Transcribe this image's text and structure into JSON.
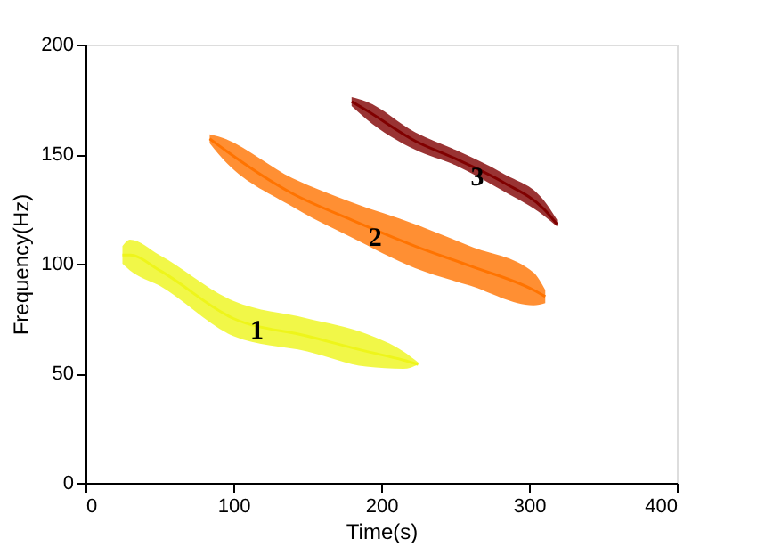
{
  "chart_data": {
    "type": "line",
    "xlabel": "Time(s)",
    "ylabel": "Frequency(Hz)",
    "xlim": [
      0,
      400
    ],
    "xticks": [
      0,
      100,
      200,
      300,
      400
    ],
    "ylim": [
      0,
      200
    ],
    "yticks": [
      0,
      50,
      100,
      150,
      200
    ],
    "grid": false,
    "series": [
      {
        "color": "#eef51a",
        "x": [
          25,
          30,
          50,
          100,
          150,
          190,
          215,
          225
        ],
        "values": [
          104,
          104,
          97,
          75,
          67,
          60,
          56,
          54
        ],
        "lower": [
          100,
          97,
          90,
          67,
          60,
          53,
          52,
          54
        ],
        "upper": [
          108,
          111,
          104,
          83,
          75,
          68,
          60,
          55
        ]
      },
      {
        "color": "#ff7300",
        "x": [
          84,
          90,
          140,
          180,
          223,
          260,
          303,
          311
        ],
        "values": [
          157,
          154,
          132,
          120,
          108,
          99,
          88,
          85
        ],
        "lower": [
          155,
          150,
          126,
          112,
          98,
          90,
          81,
          82
        ],
        "upper": [
          159,
          158,
          139,
          128,
          118,
          108,
          96,
          88
        ]
      },
      {
        "color": "#800000",
        "x": [
          180,
          190,
          223,
          250,
          283,
          310,
          319
        ],
        "values": [
          174,
          170,
          156,
          148,
          137,
          125,
          118
        ],
        "lower": [
          172,
          166,
          152,
          145,
          133,
          122,
          117
        ],
        "upper": [
          176,
          174,
          160,
          152,
          141,
          129,
          120
        ]
      }
    ],
    "annotations": [
      {
        "text": "1",
        "x": 116,
        "y": 70
      },
      {
        "text": "2",
        "x": 196,
        "y": 112
      },
      {
        "text": "3",
        "x": 265,
        "y": 140
      }
    ]
  }
}
